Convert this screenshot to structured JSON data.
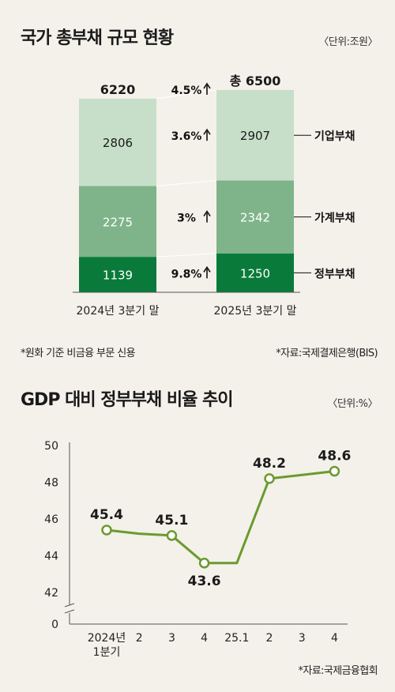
{
  "chart_data": [
    {
      "type": "bar",
      "title": "국가 총부채 규모 현황",
      "unit": "〈단위:조원〉",
      "categories": [
        "2024년 3분기 말",
        "2025년 3분기 말"
      ],
      "totals": [
        "6220",
        "총 6500"
      ],
      "series": [
        {
          "name": "정부부채",
          "values": [
            1139,
            1250
          ],
          "color": "#0a7a3a",
          "change": "9.8%"
        },
        {
          "name": "가계부채",
          "values": [
            2275,
            2342
          ],
          "color": "#7fb48a",
          "change": "3%"
        },
        {
          "name": "기업부채",
          "values": [
            2806,
            2907
          ],
          "color": "#c7dfc9",
          "change": "3.6%"
        }
      ],
      "total_change": "4.5%",
      "note_left": "*원화 기준 비금융 부문 신용",
      "note_right": "*자료:국제결제은행(BIS)"
    },
    {
      "type": "line",
      "title": "GDP 대비 정부부채 비율 추이",
      "unit": "〈단위:%〉",
      "categories": [
        "2024년\n1분기",
        "2",
        "3",
        "4",
        "25.1",
        "2",
        "3",
        "4"
      ],
      "x": [
        0,
        1,
        2,
        3,
        4,
        5,
        6,
        7
      ],
      "series": [
        {
          "name": "",
          "values": [
            45.4,
            45.2,
            45.1,
            43.6,
            43.6,
            48.2,
            48.4,
            48.6
          ],
          "color": "#6b9a2f"
        }
      ],
      "labels": [
        {
          "index": 0,
          "text": "45.4"
        },
        {
          "index": 2,
          "text": "45.1"
        },
        {
          "index": 3,
          "text": "43.6"
        },
        {
          "index": 5,
          "text": "48.2"
        },
        {
          "index": 7,
          "text": "48.6"
        }
      ],
      "markers": [
        0,
        2,
        3,
        5,
        7
      ],
      "yticks": [
        0,
        42,
        44,
        46,
        48,
        50
      ],
      "ylim": [
        42,
        50
      ],
      "axis_break": true,
      "source": "*자료:국제금융협회"
    }
  ]
}
